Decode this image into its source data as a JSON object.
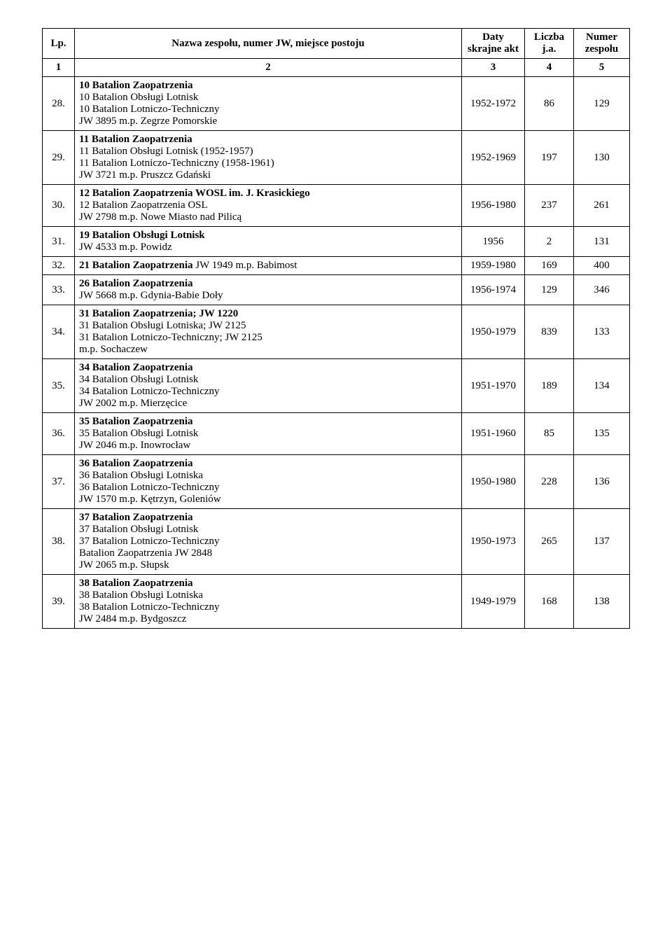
{
  "headers": {
    "lp": "Lp.",
    "name": "Nazwa zespołu, numer JW, miejsce postoju",
    "dates": "Daty skrajne akt",
    "count": "Liczba j.a.",
    "num": "Numer zespołu",
    "sub_lp": "1",
    "sub_name": "2",
    "sub_dates": "3",
    "sub_count": "4",
    "sub_num": "5"
  },
  "rows": [
    {
      "lp": "28.",
      "lines": [
        {
          "text": "10 Batalion Zaopatrzenia",
          "bold": true
        },
        {
          "text": "10 Batalion Obsługi Lotnisk"
        },
        {
          "text": "10 Batalion Lotniczo-Techniczny"
        },
        {
          "text": "JW 3895 m.p. Zegrze Pomorskie"
        }
      ],
      "dates": "1952-1972",
      "count": "86",
      "num": "129"
    },
    {
      "lp": "29.",
      "lines": [
        {
          "text": "11 Batalion Zaopatrzenia",
          "bold": true
        },
        {
          "text": "11 Batalion Obsługi Lotnisk (1952-1957)"
        },
        {
          "text": "11 Batalion Lotniczo-Techniczny (1958-1961)"
        },
        {
          "text": "JW 3721 m.p. Pruszcz Gdański"
        }
      ],
      "dates": "1952-1969",
      "count": "197",
      "num": "130"
    },
    {
      "lp": "30.",
      "lines": [
        {
          "text": "12 Batalion Zaopatrzenia WOSL im. J. Krasickiego",
          "bold": true
        },
        {
          "text": "12 Batalion Zaopatrzenia OSL"
        },
        {
          "text": "JW 2798 m.p. Nowe Miasto nad Pilicą"
        }
      ],
      "dates": "1956-1980",
      "count": "237",
      "num": "261"
    },
    {
      "lp": "31.",
      "lines": [
        {
          "text": "19 Batalion Obsługi Lotnisk",
          "bold": true
        },
        {
          "text": "JW 4533 m.p. Powidz"
        }
      ],
      "dates": "1956",
      "count": "2",
      "num": "131"
    },
    {
      "lp": "32.",
      "lines": [
        {
          "text": "21 Batalion Zaopatrzenia",
          "bold": true,
          "inline_tail": " JW 1949 m.p. Babimost"
        }
      ],
      "dates": "1959-1980",
      "count": "169",
      "num": "400"
    },
    {
      "lp": "33.",
      "lines": [
        {
          "text": "26 Batalion Zaopatrzenia",
          "bold": true
        },
        {
          "text": "JW 5668 m.p. Gdynia-Babie Doły"
        }
      ],
      "dates": "1956-1974",
      "count": "129",
      "num": "346"
    },
    {
      "lp": "34.",
      "lines": [
        {
          "text": "31 Batalion Zaopatrzenia; JW 1220",
          "bold": true
        },
        {
          "text": "31 Batalion Obsługi Lotniska; JW 2125"
        },
        {
          "text": "31 Batalion Lotniczo-Techniczny; JW 2125"
        },
        {
          "text": "m.p. Sochaczew"
        }
      ],
      "dates": "1950-1979",
      "count": "839",
      "num": "133"
    },
    {
      "lp": "35.",
      "lines": [
        {
          "text": "34 Batalion Zaopatrzenia",
          "bold": true
        },
        {
          "text": "34 Batalion Obsługi Lotnisk"
        },
        {
          "text": "34 Batalion Lotniczo-Techniczny"
        },
        {
          "text": "JW 2002 m.p. Mierzęcice"
        }
      ],
      "dates": "1951-1970",
      "count": "189",
      "num": "134"
    },
    {
      "lp": "36.",
      "lines": [
        {
          "text": "35 Batalion Zaopatrzenia",
          "bold": true
        },
        {
          "text": "35 Batalion Obsługi Lotnisk"
        },
        {
          "text": "JW 2046 m.p. Inowrocław"
        }
      ],
      "dates": "1951-1960",
      "count": "85",
      "num": "135"
    },
    {
      "lp": "37.",
      "lines": [
        {
          "text": "36 Batalion Zaopatrzenia",
          "bold": true
        },
        {
          "text": "36 Batalion Obsługi Lotniska"
        },
        {
          "text": "36 Batalion Lotniczo-Techniczny"
        },
        {
          "text": "JW 1570 m.p. Kętrzyn, Goleniów"
        }
      ],
      "dates": "1950-1980",
      "count": "228",
      "num": "136"
    },
    {
      "lp": "38.",
      "lines": [
        {
          "text": "37 Batalion Zaopatrzenia",
          "bold": true
        },
        {
          "text": "37 Batalion Obsługi Lotnisk"
        },
        {
          "text": "37 Batalion Lotniczo-Techniczny"
        },
        {
          "text": "Batalion Zaopatrzenia JW 2848"
        },
        {
          "text": "JW 2065 m.p. Słupsk"
        }
      ],
      "dates": "1950-1973",
      "count": "265",
      "num": "137"
    },
    {
      "lp": "39.",
      "lines": [
        {
          "text": "38 Batalion Zaopatrzenia",
          "bold": true
        },
        {
          "text": "38 Batalion Obsługi Lotniska"
        },
        {
          "text": "38 Batalion Lotniczo-Techniczny"
        },
        {
          "text": "JW 2484 m.p. Bydgoszcz"
        }
      ],
      "dates": "1949-1979",
      "count": "168",
      "num": "138"
    }
  ]
}
